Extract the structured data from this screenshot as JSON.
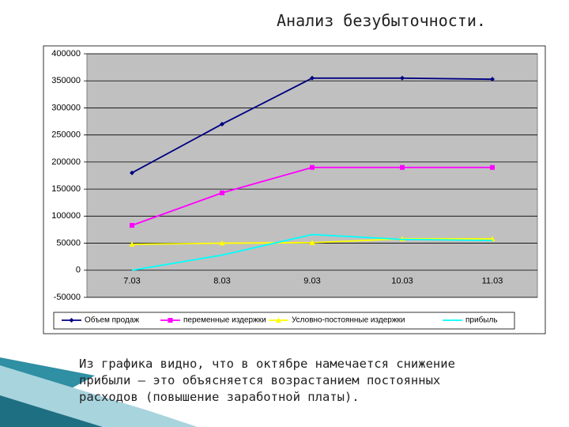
{
  "title": "Анализ безубыточности.",
  "chart_data": {
    "type": "line",
    "categories": [
      "7.03",
      "8.03",
      "9.03",
      "10.03",
      "11.03"
    ],
    "series": [
      {
        "name": "Объем продаж",
        "color": "#000080",
        "marker": "diamond",
        "values": [
          180000,
          270000,
          355000,
          355000,
          353000
        ]
      },
      {
        "name": "переменные издержки",
        "color": "#ff00ff",
        "marker": "square",
        "values": [
          83000,
          143000,
          190000,
          190000,
          190000
        ]
      },
      {
        "name": "Условно-постоянные издержки",
        "color": "#ffff00",
        "marker": "triangle",
        "values": [
          48000,
          50000,
          51000,
          58000,
          58000
        ]
      },
      {
        "name": "прибыль",
        "color": "#00ffff",
        "marker": "none",
        "values": [
          0,
          28000,
          66000,
          57000,
          55000
        ]
      }
    ],
    "ylim": [
      -50000,
      400000
    ],
    "yticks": [
      -50000,
      0,
      50000,
      100000,
      150000,
      200000,
      250000,
      300000,
      350000,
      400000
    ],
    "grid": true,
    "legend": "bottom"
  },
  "note": "Из графика видно, что в октябре намечается снижение прибыли – это объясняется возрастанием постоянных расходов (повышение заработной платы)."
}
